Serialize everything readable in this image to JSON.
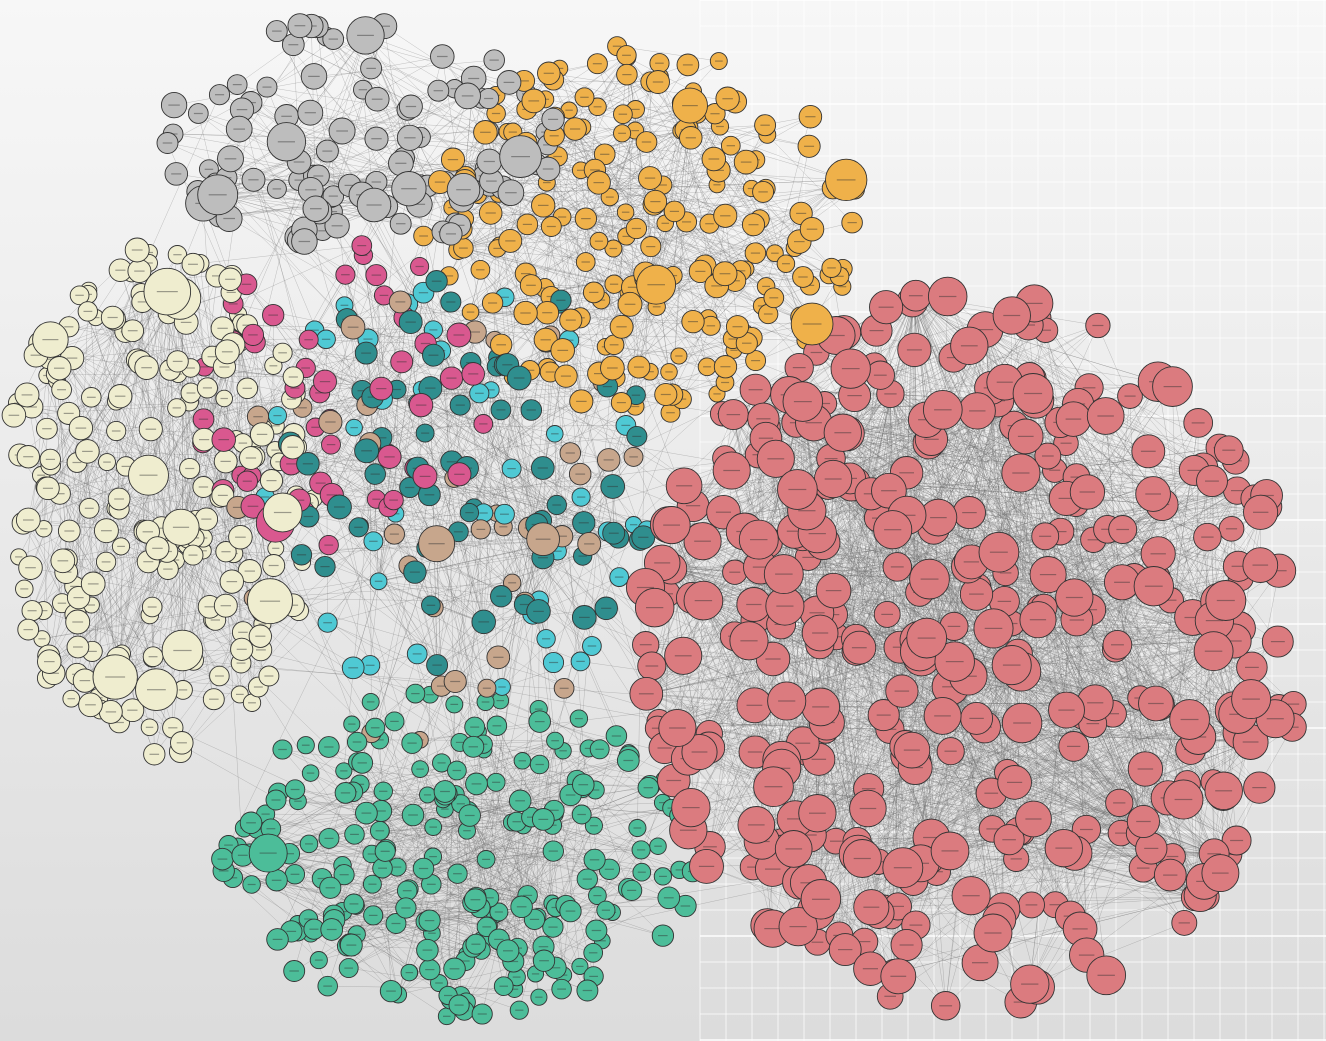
{
  "diagram": {
    "type": "network-graph",
    "grid_backdrop": true,
    "clusters": [
      {
        "id": "gray",
        "color": "#bdbdbd"
      },
      {
        "id": "orange",
        "color": "#efb14a"
      },
      {
        "id": "cream",
        "color": "#efedcf"
      },
      {
        "id": "magenta",
        "color": "#d9588f"
      },
      {
        "id": "teal",
        "color": "#2f8e8e"
      },
      {
        "id": "cyan",
        "color": "#4fc9d4"
      },
      {
        "id": "tan",
        "color": "#c7a68c"
      },
      {
        "id": "green",
        "color": "#4cbd99"
      },
      {
        "id": "red",
        "color": "#db7b7f"
      }
    ]
  }
}
